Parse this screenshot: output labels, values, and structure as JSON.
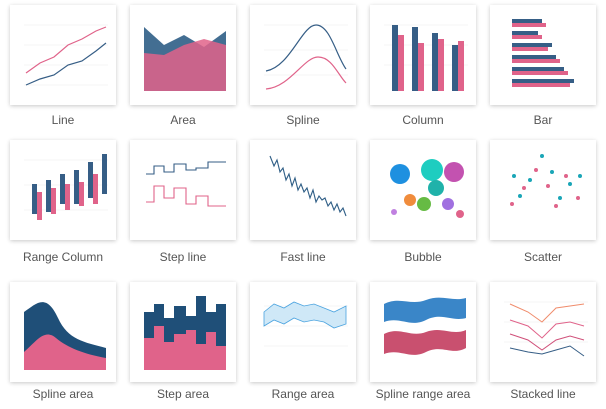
{
  "items": [
    {
      "label": "Line"
    },
    {
      "label": "Area"
    },
    {
      "label": "Spline"
    },
    {
      "label": "Column"
    },
    {
      "label": "Bar"
    },
    {
      "label": "Range Column"
    },
    {
      "label": "Step line"
    },
    {
      "label": "Fast line"
    },
    {
      "label": "Bubble"
    },
    {
      "label": "Scatter"
    },
    {
      "label": "Spline area"
    },
    {
      "label": "Step area"
    },
    {
      "label": "Range area"
    },
    {
      "label": "Spline range area"
    },
    {
      "label": "Stacked line"
    }
  ]
}
